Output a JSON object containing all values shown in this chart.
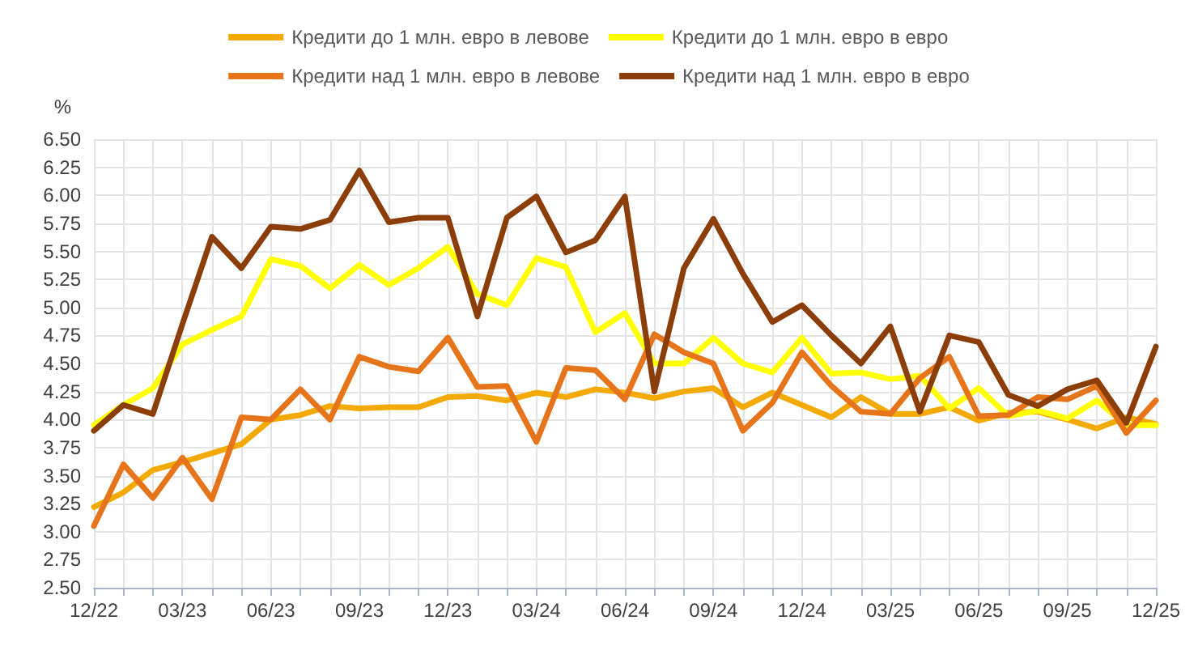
{
  "chart_data": {
    "type": "line",
    "ylabel": "%",
    "categories": [
      "12/22",
      null,
      null,
      "03/23",
      null,
      null,
      "06/23",
      null,
      null,
      "09/23",
      null,
      null,
      "12/23",
      null,
      null,
      "03/24",
      null,
      null,
      "06/24",
      null,
      null,
      "09/24",
      null,
      null,
      "12/24",
      null,
      null,
      "03/25",
      null,
      null,
      "06/25",
      null,
      null,
      "09/25",
      null,
      null,
      "12/25"
    ],
    "series": [
      {
        "name": "Кредити до 1 млн. евро в левове",
        "color": "#f2a900",
        "values": [
          3.22,
          3.35,
          3.55,
          3.62,
          3.7,
          3.78,
          4.0,
          4.04,
          4.12,
          4.1,
          4.11,
          4.11,
          4.2,
          4.21,
          4.17,
          4.24,
          4.2,
          4.27,
          4.24,
          4.19,
          4.25,
          4.28,
          4.11,
          4.24,
          4.13,
          4.02,
          4.2,
          4.05,
          4.05,
          4.11,
          3.99,
          4.06,
          4.07,
          4.0,
          3.92,
          4.02,
          3.96
        ]
      },
      {
        "name": "Кредити до 1 млн. евро в евро",
        "color": "#ffff00",
        "values": [
          3.95,
          4.13,
          4.28,
          4.67,
          4.8,
          4.92,
          5.43,
          5.37,
          5.17,
          5.38,
          5.2,
          5.35,
          5.54,
          5.12,
          5.02,
          5.44,
          5.36,
          4.78,
          4.95,
          4.5,
          4.5,
          4.73,
          4.5,
          4.42,
          4.73,
          4.41,
          4.42,
          4.36,
          4.39,
          4.1,
          4.28,
          4.03,
          4.08,
          4.01,
          4.17,
          3.95,
          3.95
        ]
      },
      {
        "name": "Кредити над 1 млн. евро в левове",
        "color": "#e5741a",
        "values": [
          3.05,
          3.6,
          3.3,
          3.66,
          3.29,
          4.02,
          4.0,
          4.27,
          4.0,
          4.56,
          4.47,
          4.43,
          4.73,
          4.29,
          4.3,
          3.8,
          4.46,
          4.44,
          4.18,
          4.76,
          4.6,
          4.5,
          3.9,
          4.15,
          4.6,
          4.3,
          4.07,
          4.05,
          4.37,
          4.56,
          4.03,
          4.04,
          4.2,
          4.18,
          4.3,
          3.88,
          4.17
        ]
      },
      {
        "name": "Кредити над 1 млн. евро в евро",
        "color": "#8b3d0a",
        "values": [
          3.9,
          4.13,
          4.05,
          4.85,
          5.63,
          5.35,
          5.72,
          5.7,
          5.78,
          6.22,
          5.76,
          5.8,
          5.8,
          4.92,
          5.8,
          5.99,
          5.49,
          5.6,
          5.99,
          4.25,
          5.35,
          5.79,
          5.3,
          4.87,
          5.02,
          4.75,
          4.5,
          4.83,
          4.07,
          4.75,
          4.69,
          4.22,
          4.12,
          4.27,
          4.35,
          3.97,
          4.65
        ]
      }
    ],
    "ylim": [
      2.5,
      6.5
    ],
    "yticks": [
      {
        "value": 2.5,
        "label": "2.50"
      },
      {
        "value": 2.75,
        "label": "2.75"
      },
      {
        "value": 3,
        "label": "3.00"
      },
      {
        "value": 3.25,
        "label": "3.25"
      },
      {
        "value": 3.5,
        "label": "3.50"
      },
      {
        "value": 3.75,
        "label": "3.75"
      },
      {
        "value": 4,
        "label": "4.00"
      },
      {
        "value": 4.25,
        "label": "4.25"
      },
      {
        "value": 4.5,
        "label": "4.50"
      },
      {
        "value": 4.75,
        "label": "4.75"
      },
      {
        "value": 5,
        "label": "5.00"
      },
      {
        "value": 5.25,
        "label": "5.25"
      },
      {
        "value": 5.5,
        "label": "5.50"
      },
      {
        "value": 5.75,
        "label": "5.75"
      },
      {
        "value": 6,
        "label": "6.00"
      },
      {
        "value": 6.25,
        "label": "6.25"
      },
      {
        "value": 6.5,
        "label": "6.50"
      }
    ],
    "grid": true,
    "legend": "top",
    "marker": "none",
    "line_style": "solid"
  }
}
